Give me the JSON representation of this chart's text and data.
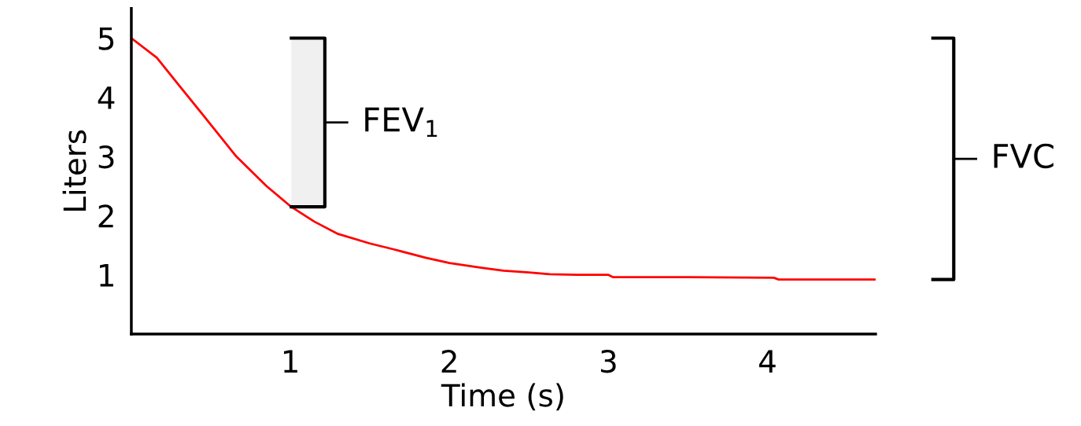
{
  "chart_data": {
    "type": "line",
    "xlabel": "Time (s)",
    "ylabel": "Liters",
    "x": [
      0,
      0.16,
      0.3,
      0.46,
      0.66,
      0.85,
      1.0,
      1.15,
      1.3,
      1.5,
      1.65,
      1.85,
      2.0,
      2.2,
      2.34,
      2.5,
      2.63,
      2.8,
      3.0,
      3.03,
      3.5,
      4.04,
      4.07,
      4.68
    ],
    "series": [
      {
        "color": "#ff0000",
        "values": [
          5,
          4.67,
          4.2,
          3.67,
          3.0,
          2.5,
          2.16,
          1.9,
          1.69,
          1.53,
          1.43,
          1.29,
          1.2,
          1.12,
          1.07,
          1.04,
          1.01,
          1.0,
          1.0,
          0.96,
          0.96,
          0.95,
          0.92,
          0.92
        ]
      }
    ],
    "xlim": [
      0,
      4.68
    ],
    "ylim": [
      0,
      5.5
    ],
    "xticks": [
      1,
      2,
      3,
      4
    ],
    "yticks": [
      1,
      2,
      3,
      4,
      5
    ],
    "grid": false,
    "marker": "none",
    "line_style": "solid",
    "bands": [
      {
        "axis": "y",
        "from": 2.15,
        "to": 5,
        "label": "FEV$_{1}$"
      }
    ],
    "annotations": [
      "FVC"
    ]
  }
}
